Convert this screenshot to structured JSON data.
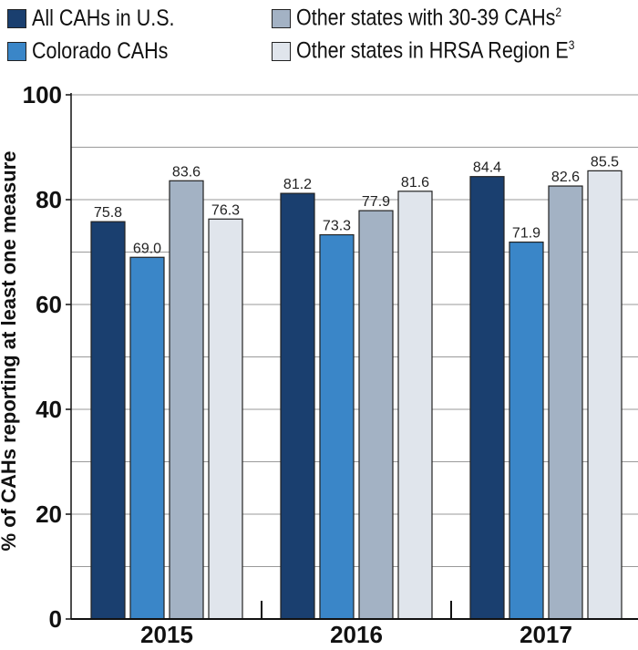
{
  "legend": [
    {
      "label": "All CAHs in U.S.",
      "sup": "",
      "color": "#1a3f6f"
    },
    {
      "label": "Colorado CAHs",
      "sup": "",
      "color": "#3a86c8"
    },
    {
      "label": "Other states with 30-39 CAHs",
      "sup": "2",
      "color": "#a3b2c4"
    },
    {
      "label": "Other states in HRSA Region E",
      "sup": "3",
      "color": "#e0e5ec"
    }
  ],
  "chart_data": {
    "type": "bar",
    "categories": [
      "2015",
      "2016",
      "2017"
    ],
    "series": [
      {
        "name": "All CAHs in U.S.",
        "values": [
          75.8,
          81.2,
          84.4
        ],
        "color": "#1a3f6f"
      },
      {
        "name": "Colorado CAHs",
        "values": [
          69.0,
          73.3,
          71.9
        ],
        "color": "#3a86c8"
      },
      {
        "name": "Other states with 30-39 CAHs",
        "values": [
          83.6,
          77.9,
          82.6
        ],
        "color": "#a3b2c4"
      },
      {
        "name": "Other states in HRSA Region E",
        "values": [
          76.3,
          81.6,
          85.5
        ],
        "color": "#e0e5ec"
      }
    ],
    "value_labels": [
      [
        "75.8",
        "81.2",
        "84.4"
      ],
      [
        "69.0",
        "73.3",
        "71.9"
      ],
      [
        "83.6",
        "77.9",
        "82.6"
      ],
      [
        "76.3",
        "81.6",
        "85.5"
      ]
    ],
    "ylabel": "% of CAHs reporting at least one measure",
    "ylim": [
      0,
      100
    ],
    "yticks": [
      "0",
      "20",
      "40",
      "60",
      "80",
      "100"
    ],
    "ytick_values": [
      0,
      20,
      40,
      60,
      80,
      100
    ],
    "grid": true,
    "legend_position": "top"
  }
}
